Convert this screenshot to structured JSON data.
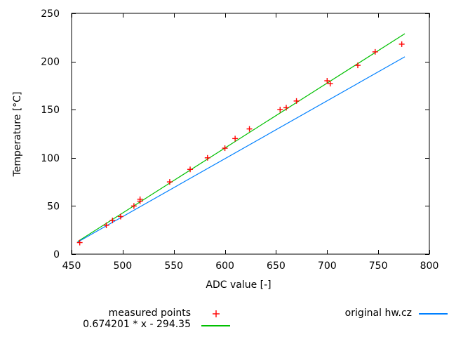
{
  "chart_data": {
    "type": "scatter",
    "title": "",
    "xlabel": "ADC value [-]",
    "ylabel": "Temperature [°C]",
    "xlim": [
      450,
      800
    ],
    "ylim": [
      0,
      250
    ],
    "xticks": [
      450,
      500,
      550,
      600,
      650,
      700,
      750,
      800
    ],
    "yticks": [
      0,
      50,
      100,
      150,
      200,
      250
    ],
    "grid": false,
    "legend_position": "below-plot",
    "axis_color": "#000000",
    "series": [
      {
        "name": "measured points",
        "type": "points",
        "marker": "plus",
        "color": "#ff0000",
        "points": [
          [
            458,
            12
          ],
          [
            484,
            30
          ],
          [
            490,
            35
          ],
          [
            498,
            39
          ],
          [
            511,
            50
          ],
          [
            517,
            55
          ],
          [
            517,
            57
          ],
          [
            546,
            75
          ],
          [
            566,
            88
          ],
          [
            583,
            100
          ],
          [
            600,
            110
          ],
          [
            610,
            120
          ],
          [
            624,
            130
          ],
          [
            654,
            150
          ],
          [
            660,
            152
          ],
          [
            670,
            159
          ],
          [
            700,
            180
          ],
          [
            703,
            177
          ],
          [
            730,
            196
          ],
          [
            747,
            210
          ],
          [
            773,
            218
          ]
        ]
      },
      {
        "name": "0.674201 * x - 294.35",
        "type": "line",
        "color": "#00c000",
        "slope": 0.674201,
        "intercept": -294.35,
        "x_range": [
          456,
          776
        ]
      },
      {
        "name": "original hw.cz",
        "type": "line",
        "color": "#0080ff",
        "slope": 0.601,
        "intercept": -261.5,
        "x_range": [
          456,
          776
        ]
      }
    ]
  }
}
